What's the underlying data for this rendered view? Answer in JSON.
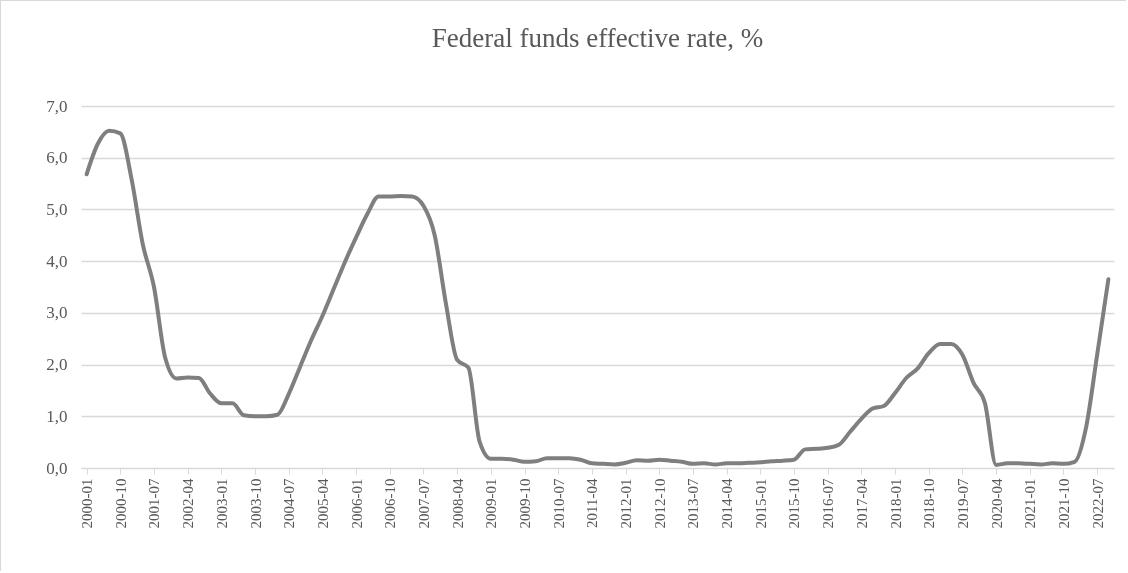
{
  "chart_data": {
    "type": "line",
    "title": "Federal funds effective rate, %",
    "categories": [
      "2000-01",
      null,
      null,
      "2000-10",
      null,
      null,
      "2001-07",
      null,
      null,
      "2002-04",
      null,
      null,
      "2003-01",
      null,
      null,
      "2003-10",
      null,
      null,
      "2004-07",
      null,
      null,
      "2005-04",
      null,
      null,
      "2006-01",
      null,
      null,
      "2006-10",
      null,
      null,
      "2007-07",
      null,
      null,
      "2008-04",
      null,
      null,
      "2009-01",
      null,
      null,
      "2009-10",
      null,
      null,
      "2010-07",
      null,
      null,
      "2011-04",
      null,
      null,
      "2012-01",
      null,
      null,
      "2012-10",
      null,
      null,
      "2013-07",
      null,
      null,
      "2014-04",
      null,
      null,
      "2015-01",
      null,
      null,
      "2015-10",
      null,
      null,
      "2016-07",
      null,
      null,
      "2017-04",
      null,
      null,
      "2018-01",
      null,
      null,
      "2018-10",
      null,
      null,
      "2019-07",
      null,
      null,
      "2020-04",
      null,
      null,
      "2021-01",
      null,
      null,
      "2021-10",
      null,
      null,
      "2022-07",
      null
    ],
    "series": [
      {
        "color": "#7f7f7f",
        "values": [
          5.68,
          6.27,
          6.52,
          6.47,
          5.59,
          4.33,
          3.5,
          2.13,
          1.73,
          1.75,
          1.74,
          1.44,
          1.25,
          1.25,
          1.02,
          1.0,
          1.0,
          1.03,
          1.43,
          1.95,
          2.47,
          2.94,
          3.46,
          3.98,
          4.46,
          4.91,
          5.25,
          5.25,
          5.26,
          5.25,
          5.07,
          4.5,
          3.18,
          2.09,
          1.94,
          0.51,
          0.18,
          0.18,
          0.16,
          0.12,
          0.13,
          0.19,
          0.19,
          0.19,
          0.16,
          0.09,
          0.08,
          0.07,
          0.1,
          0.15,
          0.14,
          0.16,
          0.14,
          0.12,
          0.08,
          0.09,
          0.07,
          0.09,
          0.09,
          0.1,
          0.11,
          0.13,
          0.14,
          0.16,
          0.36,
          0.37,
          0.39,
          0.45,
          0.7,
          0.95,
          1.15,
          1.2,
          1.45,
          1.74,
          1.92,
          2.22,
          2.4,
          2.4,
          2.19,
          1.64,
          1.26,
          0.06,
          0.09,
          0.09,
          0.08,
          0.07,
          0.09,
          0.08,
          0.12,
          0.77,
          2.19,
          3.65
        ]
      }
    ],
    "ylim": [
      0,
      7
    ],
    "yticks": [
      {
        "value": 0,
        "label": "0,0"
      },
      {
        "value": 1,
        "label": "1,0"
      },
      {
        "value": 2,
        "label": "2,0"
      },
      {
        "value": 3,
        "label": "3,0"
      },
      {
        "value": 4,
        "label": "4,0"
      },
      {
        "value": 5,
        "label": "5,0"
      },
      {
        "value": 6,
        "label": "6,0"
      },
      {
        "value": 7,
        "label": "7,0"
      }
    ],
    "grid": "y",
    "marker": "none",
    "line_style": "solid"
  }
}
